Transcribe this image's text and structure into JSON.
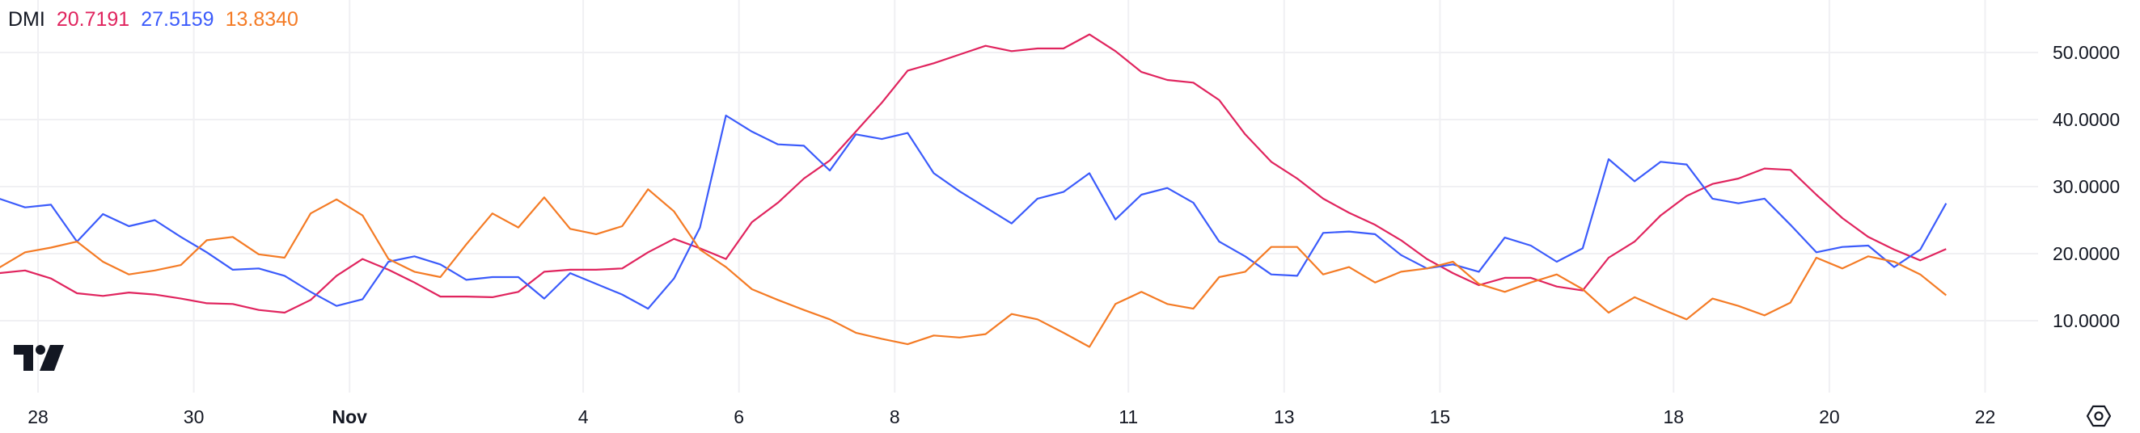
{
  "legend": {
    "title": "DMI",
    "plus_di": "20.7191",
    "minus_di": "27.5159",
    "adx": "13.8340"
  },
  "colors": {
    "plus_di": "#E0245E",
    "minus_di": "#3B5BFB",
    "adx": "#F47B25",
    "grid": "#F0F0F3",
    "text": "#131722"
  },
  "icons": {
    "logo": "tradingview-logo",
    "settings": "settings-hexagon-icon"
  },
  "chart_data": {
    "type": "line",
    "title": "DMI",
    "grid": true,
    "legend_placement": "top-left",
    "ylim": [
      0,
      55
    ],
    "y_ticks": [
      {
        "label": "50.0000",
        "value": 50
      },
      {
        "label": "40.0000",
        "value": 40
      },
      {
        "label": "30.0000",
        "value": 30
      },
      {
        "label": "20.0000",
        "value": 20
      },
      {
        "label": "10.0000",
        "value": 10
      }
    ],
    "x_ticks": [
      {
        "label": "28",
        "date": "Oct 28",
        "bold": false
      },
      {
        "label": "30",
        "date": "Oct 30",
        "bold": false
      },
      {
        "label": "Nov",
        "date": "Nov 1",
        "bold": true
      },
      {
        "label": "4",
        "date": "Nov 4",
        "bold": false
      },
      {
        "label": "6",
        "date": "Nov 6",
        "bold": false
      },
      {
        "label": "8",
        "date": "Nov 8",
        "bold": false
      },
      {
        "label": "11",
        "date": "Nov 11",
        "bold": false
      },
      {
        "label": "13",
        "date": "Nov 13",
        "bold": false
      },
      {
        "label": "15",
        "date": "Nov 15",
        "bold": false
      },
      {
        "label": "18",
        "date": "Nov 18",
        "bold": false
      },
      {
        "label": "20",
        "date": "Nov 20",
        "bold": false
      },
      {
        "label": "22",
        "date": "Nov 22",
        "bold": false
      }
    ],
    "x": [
      "Oct 27 12:00",
      "Oct 27 20:00",
      "Oct 28 04:00",
      "Oct 28 12:00",
      "Oct 28 20:00",
      "Oct 29 04:00",
      "Oct 29 12:00",
      "Oct 29 20:00",
      "Oct 30 04:00",
      "Oct 30 12:00",
      "Oct 30 20:00",
      "Oct 31 04:00",
      "Oct 31 12:00",
      "Oct 31 20:00",
      "Nov 1 04:00",
      "Nov 1 12:00",
      "Nov 1 20:00",
      "Nov 2 04:00",
      "Nov 2 12:00",
      "Nov 2 20:00",
      "Nov 3 04:00",
      "Nov 3 12:00",
      "Nov 3 20:00",
      "Nov 4 04:00",
      "Nov 4 12:00",
      "Nov 4 20:00",
      "Nov 5 04:00",
      "Nov 5 12:00",
      "Nov 5 20:00",
      "Nov 6 04:00",
      "Nov 6 12:00",
      "Nov 6 20:00",
      "Nov 7 04:00",
      "Nov 7 12:00",
      "Nov 7 20:00",
      "Nov 8 04:00",
      "Nov 8 12:00",
      "Nov 8 20:00",
      "Nov 9 04:00",
      "Nov 9 12:00",
      "Nov 9 20:00",
      "Nov 10 04:00",
      "Nov 10 12:00",
      "Nov 10 20:00",
      "Nov 11 04:00",
      "Nov 11 12:00",
      "Nov 11 20:00",
      "Nov 12 04:00",
      "Nov 12 12:00",
      "Nov 12 20:00",
      "Nov 13 04:00",
      "Nov 13 12:00",
      "Nov 13 20:00",
      "Nov 14 04:00",
      "Nov 14 12:00",
      "Nov 14 20:00",
      "Nov 15 04:00",
      "Nov 15 12:00",
      "Nov 15 20:00",
      "Nov 16 04:00",
      "Nov 16 12:00",
      "Nov 16 20:00",
      "Nov 17 04:00",
      "Nov 17 12:00",
      "Nov 17 20:00",
      "Nov 18 04:00",
      "Nov 18 12:00",
      "Nov 18 20:00",
      "Nov 19 04:00",
      "Nov 19 12:00",
      "Nov 19 20:00",
      "Nov 20 04:00",
      "Nov 20 12:00",
      "Nov 20 20:00",
      "Nov 21 04:00",
      "Nov 21 12:00"
    ],
    "series": [
      {
        "key": "plus_di",
        "values": [
          17.1,
          17.5,
          16.3,
          14.1,
          13.7,
          14.2,
          13.9,
          13.3,
          12.6,
          12.5,
          11.6,
          11.2,
          13.1,
          16.7,
          19.2,
          17.6,
          15.7,
          13.6,
          13.6,
          13.5,
          14.3,
          17.3,
          17.6,
          17.6,
          17.8,
          20.2,
          22.2,
          20.8,
          19.2,
          24.7,
          27.6,
          31.2,
          33.9,
          38.2,
          42.5,
          47.3,
          48.4,
          49.7,
          51.0,
          50.2,
          50.6,
          50.6,
          52.7,
          50.2,
          47.1,
          45.9,
          45.5,
          42.9,
          37.8,
          33.7,
          31.2,
          28.2,
          26.1,
          24.3,
          22.0,
          19.2,
          17.1,
          15.3,
          16.4,
          16.4,
          15.1,
          14.5,
          19.4,
          21.8,
          25.7,
          28.6,
          30.4,
          31.2,
          32.7,
          32.5,
          28.8,
          25.3,
          22.5,
          20.6,
          19.0,
          20.7
        ]
      },
      {
        "key": "minus_di",
        "values": [
          28.2,
          26.9,
          27.3,
          21.8,
          25.9,
          24.1,
          25.0,
          22.5,
          20.2,
          17.6,
          17.8,
          16.7,
          14.3,
          12.2,
          13.2,
          18.8,
          19.6,
          18.4,
          16.1,
          16.5,
          16.5,
          13.3,
          17.1,
          15.5,
          13.9,
          11.8,
          16.3,
          23.9,
          40.6,
          38.2,
          36.3,
          36.1,
          32.4,
          37.8,
          37.1,
          38.0,
          32.0,
          29.3,
          26.9,
          24.5,
          28.2,
          29.2,
          32.0,
          25.1,
          28.8,
          29.8,
          27.6,
          21.8,
          19.6,
          16.9,
          16.7,
          23.1,
          23.3,
          22.9,
          19.8,
          17.8,
          18.4,
          17.3,
          22.4,
          21.2,
          18.8,
          20.8,
          34.1,
          30.8,
          33.7,
          33.3,
          28.2,
          27.5,
          28.2,
          24.3,
          20.2,
          21.0,
          21.2,
          18.0,
          20.6,
          27.5
        ]
      },
      {
        "key": "adx",
        "values": [
          17.9,
          20.2,
          20.9,
          21.8,
          18.8,
          16.9,
          17.5,
          18.3,
          22.0,
          22.5,
          19.9,
          19.4,
          26.0,
          28.1,
          25.7,
          19.2,
          17.3,
          16.5,
          21.4,
          26.0,
          23.9,
          28.4,
          23.7,
          22.9,
          24.1,
          29.6,
          26.3,
          20.6,
          18.0,
          14.7,
          13.1,
          11.6,
          10.2,
          8.2,
          7.3,
          6.5,
          7.8,
          7.5,
          8.0,
          11.0,
          10.2,
          8.2,
          6.1,
          12.5,
          14.3,
          12.5,
          11.8,
          16.5,
          17.3,
          21.0,
          21.0,
          16.9,
          18.0,
          15.7,
          17.3,
          17.8,
          18.8,
          15.5,
          14.3,
          15.7,
          16.9,
          14.7,
          11.2,
          13.5,
          11.8,
          10.2,
          13.3,
          12.2,
          10.8,
          12.7,
          19.4,
          17.8,
          19.6,
          18.8,
          16.9,
          13.8
        ]
      }
    ]
  }
}
